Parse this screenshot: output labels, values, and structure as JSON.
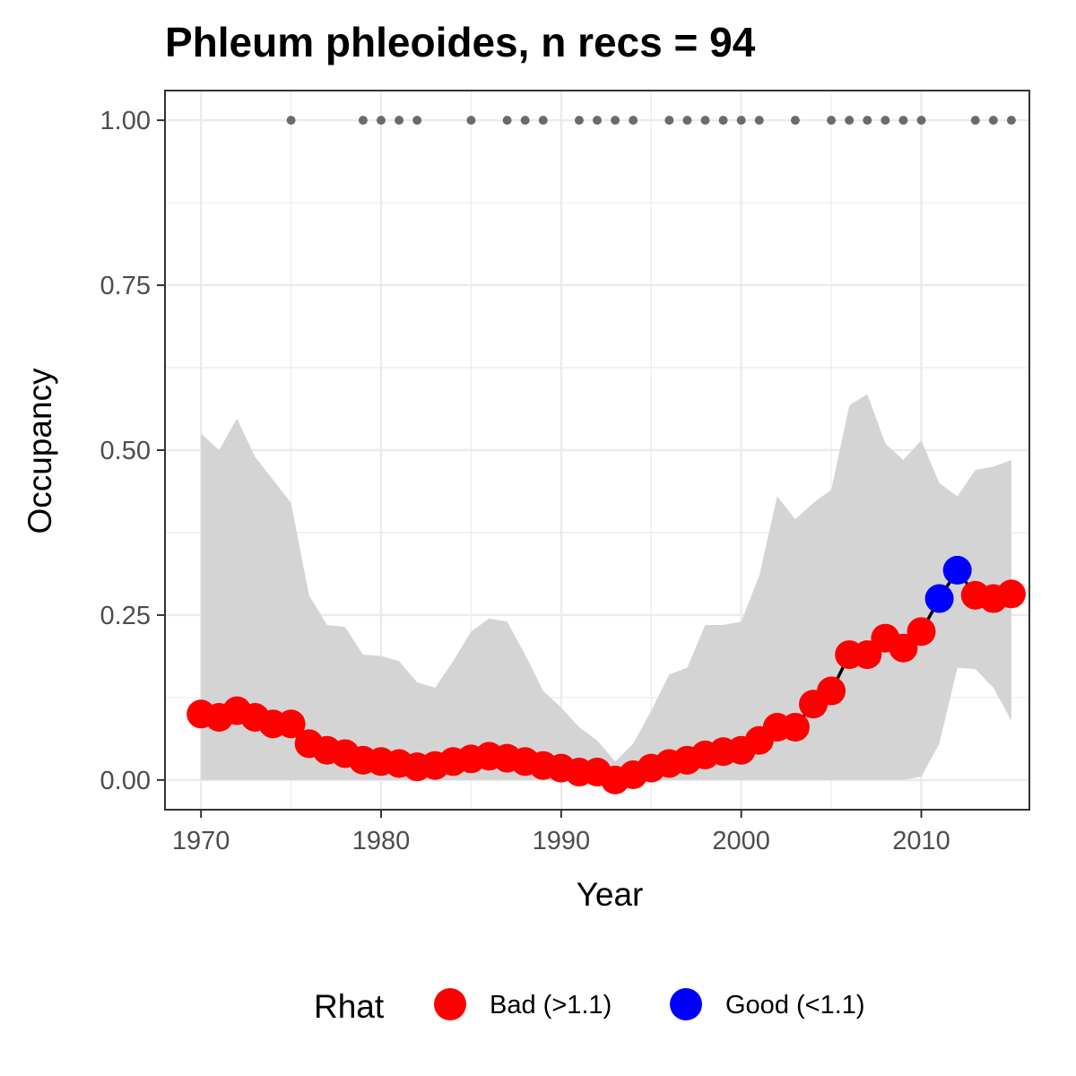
{
  "chart_data": {
    "type": "line",
    "title": "Phleum phleoides, n recs = 94",
    "xlabel": "Year",
    "ylabel": "Occupancy",
    "xlim": [
      1968,
      2016
    ],
    "ylim": [
      -0.045,
      1.045
    ],
    "x_ticks": [
      1970,
      1980,
      1990,
      2000,
      2010
    ],
    "x_tick_labels": [
      "1970",
      "1980",
      "1990",
      "2000",
      "2010"
    ],
    "y_ticks": [
      0,
      0.25,
      0.5,
      0.75,
      1.0
    ],
    "y_tick_labels": [
      "0.00",
      "0.25",
      "0.50",
      "0.75",
      "1.00"
    ],
    "grid": true,
    "legend": {
      "title": "Rhat",
      "position": "bottom",
      "entries": [
        {
          "label": "Bad (>1.1)",
          "color": "#ff0000"
        },
        {
          "label": "Good (<1.1)",
          "color": "#0000ff"
        }
      ]
    },
    "series": [
      {
        "x": [
          1970,
          1971,
          1972,
          1973,
          1974,
          1975,
          1976,
          1977,
          1978,
          1979,
          1980,
          1981,
          1982,
          1983,
          1984,
          1985,
          1986,
          1987,
          1988,
          1989,
          1990,
          1991,
          1992,
          1993,
          1994,
          1995,
          1996,
          1997,
          1998,
          1999,
          2000,
          2001,
          2002,
          2003,
          2004,
          2005,
          2006,
          2007,
          2008,
          2009,
          2010,
          2011,
          2012,
          2013,
          2014,
          2015
        ],
        "y": [
          0.1,
          0.095,
          0.105,
          0.095,
          0.085,
          0.085,
          0.055,
          0.045,
          0.04,
          0.03,
          0.028,
          0.025,
          0.02,
          0.022,
          0.028,
          0.032,
          0.036,
          0.033,
          0.028,
          0.022,
          0.018,
          0.012,
          0.012,
          0.0,
          0.008,
          0.018,
          0.025,
          0.03,
          0.038,
          0.043,
          0.045,
          0.06,
          0.08,
          0.08,
          0.115,
          0.135,
          0.19,
          0.19,
          0.215,
          0.2,
          0.225,
          0.275,
          0.318,
          0.28,
          0.275,
          0.282
        ],
        "rhat": [
          "Bad",
          "Bad",
          "Bad",
          "Bad",
          "Bad",
          "Bad",
          "Bad",
          "Bad",
          "Bad",
          "Bad",
          "Bad",
          "Bad",
          "Bad",
          "Bad",
          "Bad",
          "Bad",
          "Bad",
          "Bad",
          "Bad",
          "Bad",
          "Bad",
          "Bad",
          "Bad",
          "Bad",
          "Bad",
          "Bad",
          "Bad",
          "Bad",
          "Bad",
          "Bad",
          "Bad",
          "Bad",
          "Bad",
          "Bad",
          "Bad",
          "Bad",
          "Bad",
          "Bad",
          "Bad",
          "Bad",
          "Bad",
          "Good",
          "Good",
          "Bad",
          "Bad",
          "Bad"
        ],
        "lower": [
          0,
          0,
          0,
          0,
          0,
          0,
          0,
          0,
          0,
          0,
          0,
          0,
          0,
          0,
          0,
          0,
          0,
          0,
          0,
          0,
          0,
          0,
          0,
          0,
          0,
          0,
          0,
          0,
          0,
          0,
          0,
          0,
          0,
          0,
          0,
          0,
          0,
          0,
          0,
          0,
          0.005,
          0.055,
          0.17,
          0.168,
          0.14,
          0.09
        ],
        "upper": [
          0.525,
          0.5,
          0.548,
          0.49,
          0.455,
          0.42,
          0.28,
          0.235,
          0.232,
          0.19,
          0.188,
          0.18,
          0.148,
          0.14,
          0.18,
          0.225,
          0.245,
          0.24,
          0.19,
          0.135,
          0.11,
          0.08,
          0.06,
          0.028,
          0.055,
          0.105,
          0.16,
          0.17,
          0.235,
          0.235,
          0.24,
          0.31,
          0.43,
          0.395,
          0.42,
          0.44,
          0.568,
          0.585,
          0.51,
          0.485,
          0.515,
          0.45,
          0.43,
          0.47,
          0.475,
          0.485
        ]
      }
    ],
    "record_years": [
      1975,
      1979,
      1980,
      1981,
      1982,
      1985,
      1987,
      1988,
      1989,
      1991,
      1992,
      1993,
      1994,
      1996,
      1997,
      1998,
      1999,
      2000,
      2001,
      2003,
      2005,
      2006,
      2007,
      2008,
      2009,
      2010,
      2013,
      2014,
      2015
    ],
    "record_y": 1.0,
    "colors": {
      "bad": "#ff0000",
      "good": "#0000ff",
      "line": "#000000",
      "ribbon": "#d4d4d4",
      "record_dots": "#6b6b6b",
      "grid": "#ebebeb",
      "panel_border": "#333333"
    }
  }
}
